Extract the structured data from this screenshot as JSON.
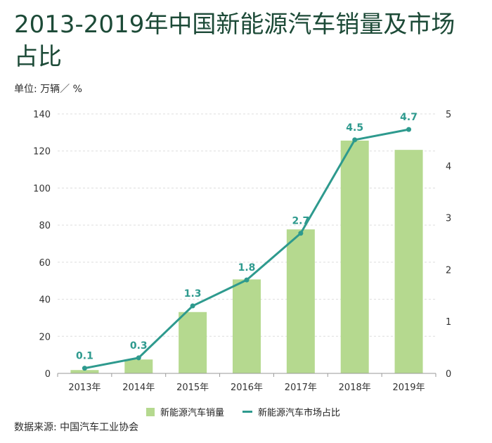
{
  "title": "2013-2019年中国新能源汽车销量及市场占比",
  "unit_label": "单位: 万辆／ %",
  "source": "数据来源: 中国汽车工业协会",
  "colors": {
    "bar": "#b5d98f",
    "line": "#2e9a8e",
    "title": "#1c4a37",
    "grid": "#dddddd"
  },
  "chart_data": {
    "type": "bar+line",
    "categories": [
      "2013年",
      "2014年",
      "2015年",
      "2016年",
      "2017年",
      "2018年",
      "2019年"
    ],
    "series": [
      {
        "name": "新能源汽车销量",
        "type": "bar",
        "axis": "left",
        "values": [
          1.8,
          7.5,
          33.1,
          50.7,
          77.7,
          125.6,
          120.6
        ]
      },
      {
        "name": "新能源汽车市场占比",
        "type": "line",
        "axis": "right",
        "values": [
          0.1,
          0.3,
          1.3,
          1.8,
          2.7,
          4.5,
          4.7
        ],
        "labels": [
          "0.1",
          "0.3",
          "1.3",
          "1.8",
          "2.7",
          "4.5",
          "4.7"
        ]
      }
    ],
    "y_left": {
      "min": 0,
      "max": 140,
      "ticks": [
        0,
        20,
        40,
        60,
        80,
        100,
        120,
        140
      ]
    },
    "y_right": {
      "min": 0,
      "max": 5,
      "ticks": [
        0,
        1,
        2,
        3,
        4,
        5
      ]
    },
    "grid": true,
    "legend_position": "bottom"
  }
}
